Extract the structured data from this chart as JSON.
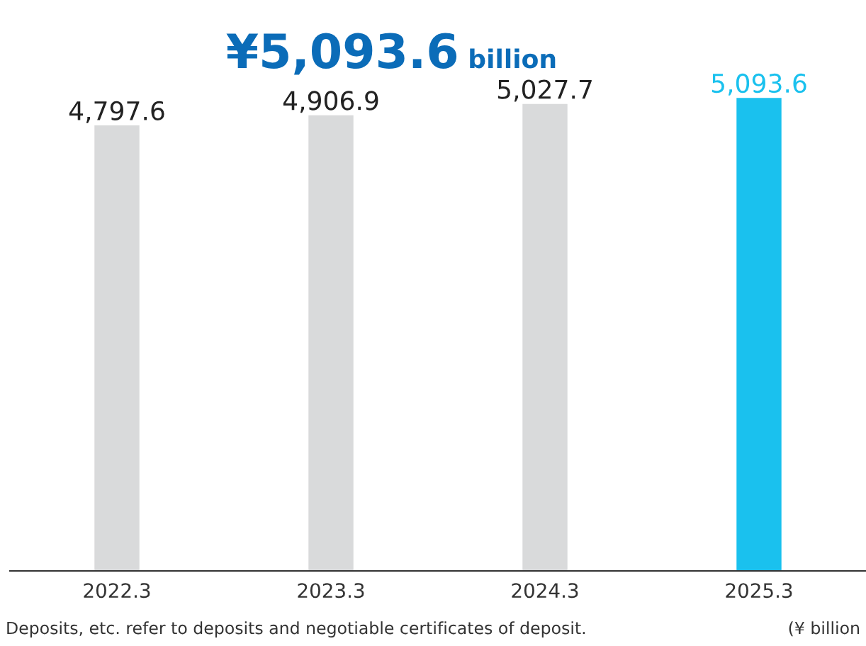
{
  "chart_data": {
    "type": "bar",
    "title": "¥5,093.6 billion",
    "categories": [
      "2022.3",
      "2023.3",
      "2024.3",
      "2025.3"
    ],
    "values": [
      4797.6,
      4906.9,
      5027.7,
      5093.6
    ],
    "colors": [
      "#d9dadb",
      "#d9dadb",
      "#d9dadb",
      "#1ac1ee"
    ],
    "value_labels": [
      "4,797.6",
      "4,906.9",
      "5,027.7",
      "5,093.6"
    ],
    "grid": false,
    "legend": false,
    "annotations": [
      "Deposits, etc. refer to deposits and negotiable certificates of deposit.",
      "(¥ billion"
    ]
  }
}
